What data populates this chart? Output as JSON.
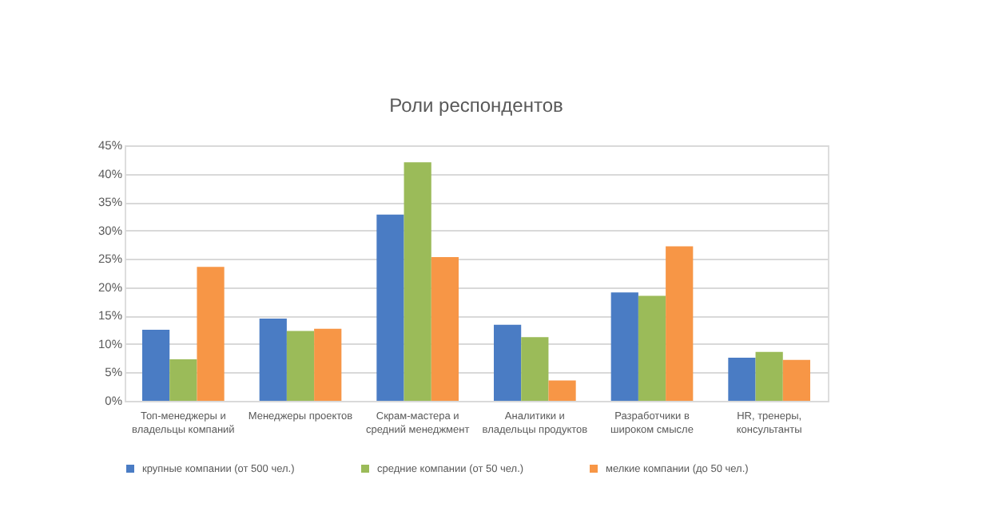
{
  "chart_data": {
    "type": "bar",
    "title": "Роли респондентов",
    "categories": [
      "Топ-менеджеры и\nвладельцы компаний",
      "Менеджеры проектов",
      "Скрам-мастера и\nсредний менеджмент",
      "Аналитики и\nвладельцы продуктов",
      "Разработчики в\nшироком смысле",
      "HR, тренеры,\nконсультанты"
    ],
    "series": [
      {
        "name": "крупные компании (от 500 чел.)",
        "color": "#4a7cc4",
        "values": [
          12.5,
          14.5,
          32.8,
          13.4,
          19.1,
          7.6
        ]
      },
      {
        "name": "средние компании (от 50 чел.)",
        "color": "#9bbb59",
        "values": [
          7.3,
          12.3,
          42.0,
          11.2,
          18.5,
          8.6
        ]
      },
      {
        "name": "мелкие компании (до 50 чел.)",
        "color": "#f79646",
        "values": [
          23.6,
          12.7,
          25.3,
          3.6,
          27.2,
          7.2
        ]
      }
    ],
    "ylim": [
      0,
      45
    ],
    "yticks": [
      {
        "value": 0,
        "label": "0%"
      },
      {
        "value": 5,
        "label": "5%"
      },
      {
        "value": 10,
        "label": "10%"
      },
      {
        "value": 15,
        "label": "15%"
      },
      {
        "value": 20,
        "label": "20%"
      },
      {
        "value": 25,
        "label": "25%"
      },
      {
        "value": 30,
        "label": "30%"
      },
      {
        "value": 35,
        "label": "35%"
      },
      {
        "value": 40,
        "label": "40%"
      },
      {
        "value": 45,
        "label": "45%"
      }
    ],
    "grid": "y",
    "legend": "bottom"
  }
}
